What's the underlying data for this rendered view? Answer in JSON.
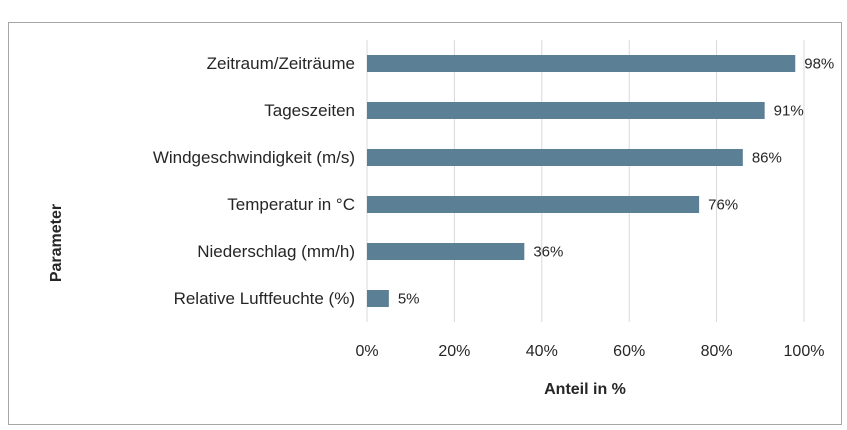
{
  "chart_data": {
    "type": "bar",
    "orientation": "horizontal",
    "categories": [
      "Zeitraum/Zeiträume",
      "Tageszeiten",
      "Windgeschwindigkeit (m/s)",
      "Temperatur in °C",
      "Niederschlag (mm/h)",
      "Relative Luftfeuchte (%)"
    ],
    "values": [
      98,
      91,
      86,
      76,
      36,
      5
    ],
    "value_labels": [
      "98%",
      "91%",
      "86%",
      "76%",
      "36%",
      "5%"
    ],
    "color": "#5b7f95",
    "xlim": [
      0,
      100
    ],
    "xticks": [
      {
        "value": 0,
        "label": "0%"
      },
      {
        "value": 20,
        "label": "20%"
      },
      {
        "value": 40,
        "label": "40%"
      },
      {
        "value": 60,
        "label": "60%"
      },
      {
        "value": 80,
        "label": "80%"
      },
      {
        "value": 100,
        "label": "100%"
      }
    ],
    "grid": true,
    "x_label": "Anteil in %",
    "y_label": "Parameter"
  }
}
